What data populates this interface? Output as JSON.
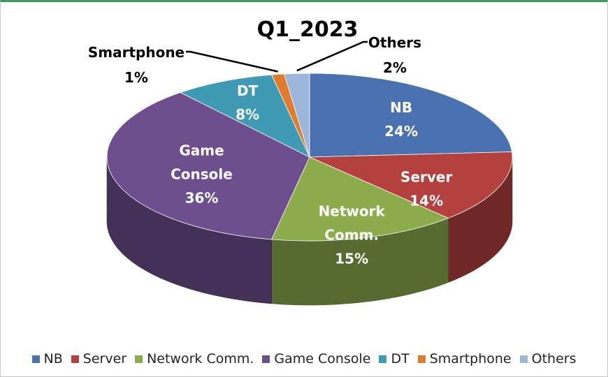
{
  "chart_data": {
    "type": "pie",
    "title": "Q1_2023",
    "slices": [
      {
        "name": "NB",
        "label_lines": [
          "NB"
        ],
        "value": 24,
        "value_label": "24%",
        "color": "#4a72b0",
        "label_color": "#ffffff"
      },
      {
        "name": "Server",
        "label_lines": [
          "Server"
        ],
        "value": 14,
        "value_label": "14%",
        "color": "#b5413e",
        "label_color": "#ffffff"
      },
      {
        "name": "Network Comm.",
        "label_lines": [
          "Network",
          "Comm."
        ],
        "value": 15,
        "value_label": "15%",
        "color": "#8cab4b",
        "label_color": "#ffffff"
      },
      {
        "name": "Game Console",
        "label_lines": [
          "Game",
          "Console"
        ],
        "value": 36,
        "value_label": "36%",
        "color": "#6e4f8e",
        "label_color": "#ffffff"
      },
      {
        "name": "DT",
        "label_lines": [
          "DT"
        ],
        "value": 8,
        "value_label": "8%",
        "color": "#3f9bb4",
        "label_color": "#ffffff"
      },
      {
        "name": "Smartphone",
        "label_lines": [
          "Smartphone"
        ],
        "value": 1,
        "value_label": "1%",
        "color": "#e07c2c",
        "label_color": "#000000"
      },
      {
        "name": "Others",
        "label_lines": [
          "Others"
        ],
        "value": 2,
        "value_label": "2%",
        "color": "#9db6dc",
        "label_color": "#000000"
      }
    ],
    "legend_position": "bottom",
    "style": "3d-pie"
  }
}
